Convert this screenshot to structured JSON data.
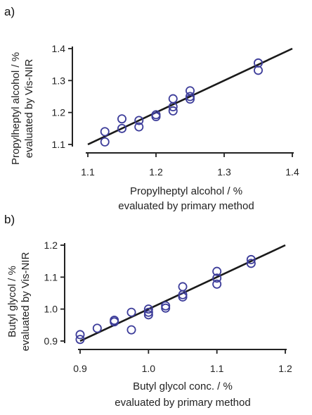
{
  "colors": {
    "points": "#3d3d9a",
    "line": "#1a1a1a",
    "axis": "#222222"
  },
  "chart_data": [
    {
      "type": "scatter",
      "panel_label": "a)",
      "xlabel": [
        "Propylheptyl alcohol / %",
        "evaluated by primary method"
      ],
      "ylabel": [
        "Propylheptyl alcohol / %",
        "evaluated by Vis-NIR"
      ],
      "xlim": [
        1.1,
        1.4
      ],
      "ylim": [
        1.1,
        1.4
      ],
      "xticks": [
        "1.1",
        "1.2",
        "1.3",
        "1.4"
      ],
      "yticks": [
        "1.1",
        "1.2",
        "1.3",
        "1.4"
      ],
      "grid": false,
      "points": [
        {
          "x": 1.125,
          "y": 1.14
        },
        {
          "x": 1.125,
          "y": 1.108
        },
        {
          "x": 1.15,
          "y": 1.18
        },
        {
          "x": 1.15,
          "y": 1.15
        },
        {
          "x": 1.175,
          "y": 1.175
        },
        {
          "x": 1.175,
          "y": 1.155
        },
        {
          "x": 1.2,
          "y": 1.193
        },
        {
          "x": 1.2,
          "y": 1.187
        },
        {
          "x": 1.225,
          "y": 1.243
        },
        {
          "x": 1.225,
          "y": 1.218
        },
        {
          "x": 1.225,
          "y": 1.205
        },
        {
          "x": 1.25,
          "y": 1.268
        },
        {
          "x": 1.25,
          "y": 1.25
        },
        {
          "x": 1.25,
          "y": 1.242
        },
        {
          "x": 1.35,
          "y": 1.355
        },
        {
          "x": 1.35,
          "y": 1.332
        }
      ],
      "fit_line": {
        "x": [
          1.1,
          1.4
        ],
        "y": [
          1.1,
          1.4
        ]
      }
    },
    {
      "type": "scatter",
      "panel_label": "b)",
      "xlabel": [
        "Butyl glycol conc. / %",
        "evaluated by primary method"
      ],
      "ylabel": [
        "Butyl glycol / %",
        "evaluated by Vis-NIR"
      ],
      "xlim": [
        0.9,
        1.2
      ],
      "ylim": [
        0.9,
        1.2
      ],
      "xticks": [
        "0.9",
        "1.0",
        "1.1",
        "1.2"
      ],
      "yticks": [
        "0.9",
        "1.0",
        "1.1",
        "1.2"
      ],
      "grid": false,
      "points": [
        {
          "x": 0.9,
          "y": 0.92
        },
        {
          "x": 0.9,
          "y": 0.905
        },
        {
          "x": 0.925,
          "y": 0.94
        },
        {
          "x": 0.95,
          "y": 0.965
        },
        {
          "x": 0.95,
          "y": 0.96
        },
        {
          "x": 0.975,
          "y": 0.99
        },
        {
          "x": 0.975,
          "y": 0.935
        },
        {
          "x": 1.0,
          "y": 1.0
        },
        {
          "x": 1.0,
          "y": 0.99
        },
        {
          "x": 1.0,
          "y": 0.982
        },
        {
          "x": 1.025,
          "y": 1.01
        },
        {
          "x": 1.025,
          "y": 1.003
        },
        {
          "x": 1.05,
          "y": 1.07
        },
        {
          "x": 1.05,
          "y": 1.045
        },
        {
          "x": 1.05,
          "y": 1.038
        },
        {
          "x": 1.1,
          "y": 1.118
        },
        {
          "x": 1.1,
          "y": 1.097
        },
        {
          "x": 1.1,
          "y": 1.078
        },
        {
          "x": 1.15,
          "y": 1.155
        },
        {
          "x": 1.15,
          "y": 1.143
        }
      ],
      "fit_line": {
        "x": [
          0.9,
          1.2
        ],
        "y": [
          0.9,
          1.2
        ]
      }
    }
  ]
}
